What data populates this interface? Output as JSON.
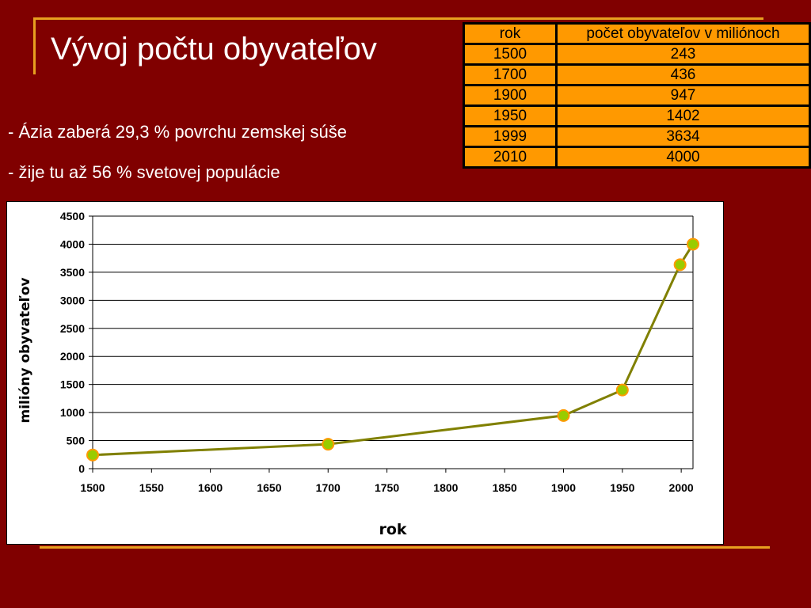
{
  "slide": {
    "title": "Vývoj počtu obyvateľov",
    "bullets": [
      "- Ázia zaberá 29,3 % povrchu zemskej súše",
      "- žije tu až 56 % svetovej populácie"
    ],
    "accent_color": "#e8a020",
    "background_color": "#800000"
  },
  "table": {
    "headers": [
      "rok",
      "počet obyvateľov v miliónoch"
    ],
    "rows": [
      [
        "1500",
        "243"
      ],
      [
        "1700",
        "436"
      ],
      [
        "1900",
        "947"
      ],
      [
        "1950",
        "1402"
      ],
      [
        "1999",
        "3634"
      ],
      [
        "2010",
        "4000"
      ]
    ],
    "fill_color": "#ff9900"
  },
  "chart_data": {
    "type": "line",
    "title": "",
    "xlabel": "rok",
    "ylabel": "milióny obyvateľov",
    "x": [
      1500,
      1700,
      1900,
      1950,
      1999,
      2010
    ],
    "series": [
      {
        "values": [
          243,
          436,
          947,
          1402,
          3634,
          4000
        ],
        "line_color": "#808000",
        "marker_color": "#99cc00",
        "marker_edge_color": "#ff9900"
      }
    ],
    "xlim": [
      1500,
      2010
    ],
    "ylim": [
      0,
      4500
    ],
    "x_ticks": [
      "1500",
      "1550",
      "1600",
      "1650",
      "1700",
      "1750",
      "1800",
      "1850",
      "1900",
      "1950",
      "2000"
    ],
    "y_ticks": [
      "0",
      "500",
      "1000",
      "1500",
      "2000",
      "2500",
      "3000",
      "3500",
      "4000",
      "4500"
    ],
    "grid": "horizontal",
    "legend": "none"
  }
}
